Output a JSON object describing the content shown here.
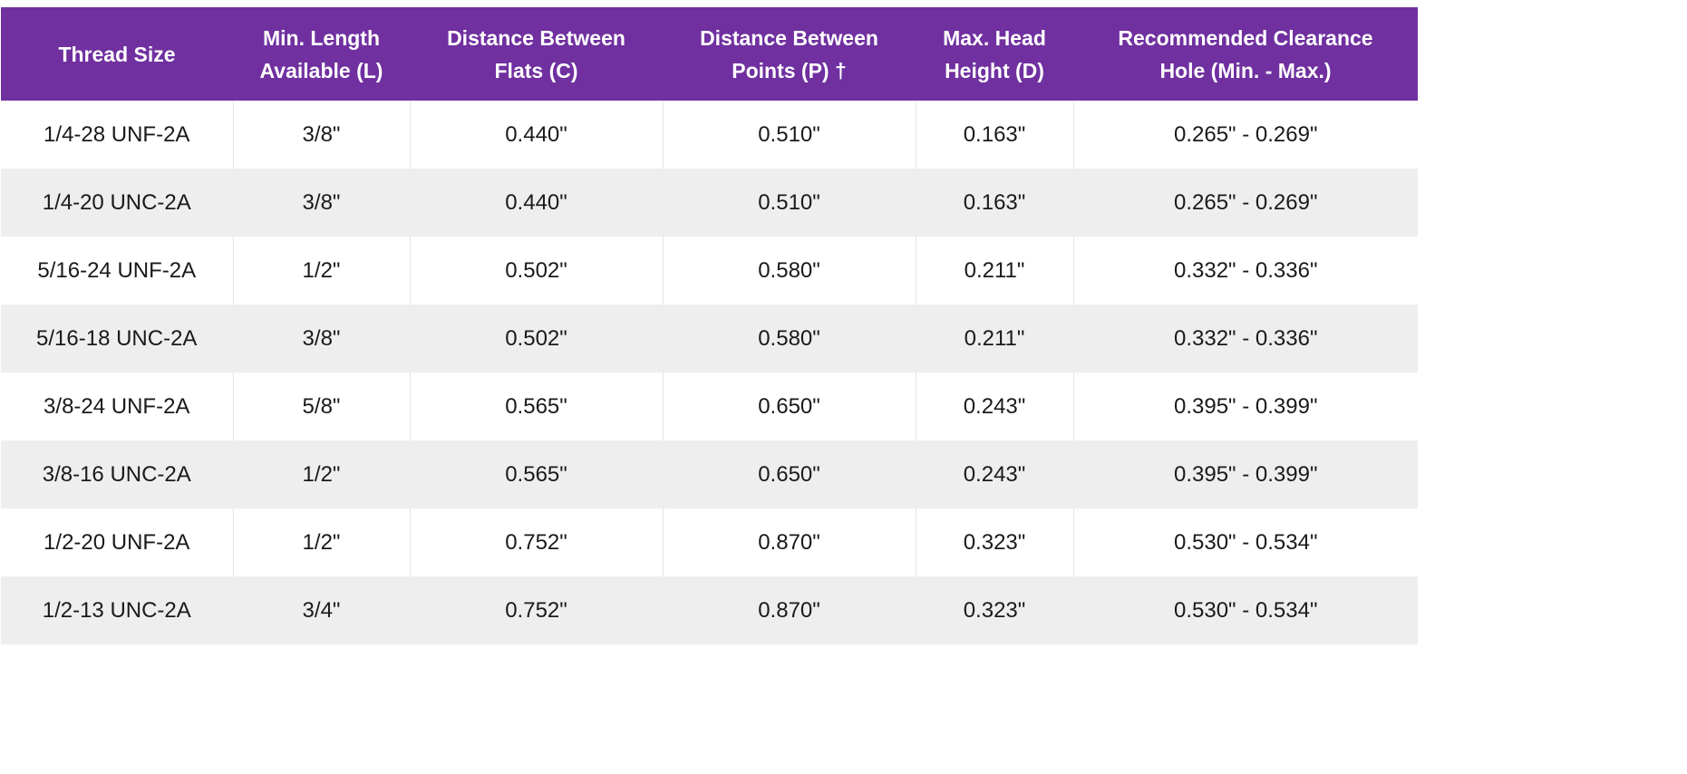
{
  "table": {
    "headers": [
      [
        "Thread Size"
      ],
      [
        "Min. Length",
        "Available (L)"
      ],
      [
        "Distance Between",
        "Flats (C)"
      ],
      [
        "Distance Between",
        "Points (P) †"
      ],
      [
        "Max. Head",
        "Height (D)"
      ],
      [
        "Recommended Clearance",
        "Hole (Min. - Max.)"
      ]
    ],
    "rows": [
      [
        "1/4-28 UNF-2A",
        "3/8\"",
        "0.440\"",
        "0.510\"",
        "0.163\"",
        "0.265\" - 0.269\""
      ],
      [
        "1/4-20 UNC-2A",
        "3/8\"",
        "0.440\"",
        "0.510\"",
        "0.163\"",
        "0.265\" - 0.269\""
      ],
      [
        "5/16-24 UNF-2A",
        "1/2\"",
        "0.502\"",
        "0.580\"",
        "0.211\"",
        "0.332\" - 0.336\""
      ],
      [
        "5/16-18 UNC-2A",
        "3/8\"",
        "0.502\"",
        "0.580\"",
        "0.211\"",
        "0.332\" - 0.336\""
      ],
      [
        "3/8-24 UNF-2A",
        "5/8\"",
        "0.565\"",
        "0.650\"",
        "0.243\"",
        "0.395\" - 0.399\""
      ],
      [
        "3/8-16 UNC-2A",
        "1/2\"",
        "0.565\"",
        "0.650\"",
        "0.243\"",
        "0.395\" - 0.399\""
      ],
      [
        "1/2-20 UNF-2A",
        "1/2\"",
        "0.752\"",
        "0.870\"",
        "0.323\"",
        "0.530\" - 0.534\""
      ],
      [
        "1/2-13 UNC-2A",
        "3/4\"",
        "0.752\"",
        "0.870\"",
        "0.323\"",
        "0.530\" - 0.534\""
      ]
    ]
  },
  "colors": {
    "header_bg": "#7030a0",
    "header_text": "#ffffff",
    "row_alt_bg": "#eeeeee"
  }
}
